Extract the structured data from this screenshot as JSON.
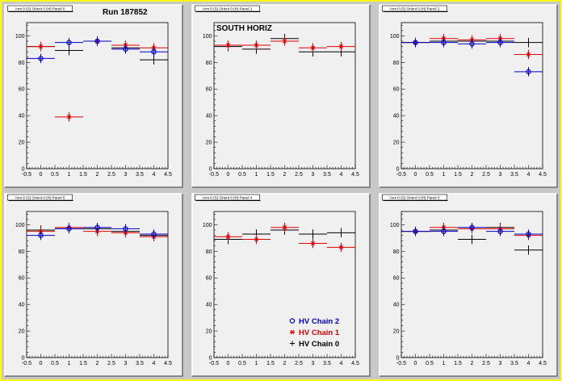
{
  "run_label": "Run 187852",
  "region_label": "SOUTH HORIZ",
  "legend": {
    "entries": [
      {
        "label": "HV Chain 2",
        "color": "#0000cc",
        "marker": "circle"
      },
      {
        "label": "HV Chain 1",
        "color": "#dd0000",
        "marker": "star"
      },
      {
        "label": "HV Chain 0",
        "color": "#000000",
        "marker": "plus"
      }
    ]
  },
  "chart_data": [
    {
      "type": "scatter",
      "title": "Arm 0 (S) Orient 0 (H) Panel 0",
      "xlim": [
        -0.5,
        4.5
      ],
      "ylim": [
        0,
        110
      ],
      "x_ticks": [
        -0.5,
        0,
        0.5,
        1,
        1.5,
        2,
        2.5,
        3,
        3.5,
        4,
        4.5
      ],
      "y_ticks": [
        0,
        20,
        40,
        60,
        80,
        100
      ],
      "series": [
        {
          "name": "HV Chain 2",
          "x": [
            0,
            1,
            2,
            3,
            4
          ],
          "y": [
            83,
            95,
            96,
            90,
            88
          ]
        },
        {
          "name": "HV Chain 1",
          "x": [
            0,
            1,
            2,
            3,
            4
          ],
          "y": [
            92,
            39,
            96,
            93,
            91
          ]
        },
        {
          "name": "HV Chain 0",
          "x": [
            0,
            1,
            2,
            3,
            4
          ],
          "y": [
            92,
            89,
            96,
            91,
            82
          ]
        }
      ]
    },
    {
      "type": "scatter",
      "title": "Arm 0 (S) Orient 0 (H) Panel 1",
      "xlim": [
        -0.5,
        4.5
      ],
      "ylim": [
        0,
        110
      ],
      "x_ticks": [
        -0.5,
        0,
        0.5,
        1,
        1.5,
        2,
        2.5,
        3,
        3.5,
        4,
        4.5
      ],
      "y_ticks": [
        0,
        20,
        40,
        60,
        80,
        100
      ],
      "series": [
        {
          "name": "HV Chain 2",
          "x": [],
          "y": []
        },
        {
          "name": "HV Chain 1",
          "x": [
            0,
            1,
            2,
            3,
            4
          ],
          "y": [
            93,
            93,
            96,
            91,
            92
          ]
        },
        {
          "name": "HV Chain 0",
          "x": [
            0,
            1,
            2,
            3,
            4
          ],
          "y": [
            92,
            90,
            98,
            88,
            88
          ]
        }
      ]
    },
    {
      "type": "scatter",
      "title": "Arm 0 (S) Orient 0 (H) Panel 2",
      "xlim": [
        -0.5,
        4.5
      ],
      "ylim": [
        0,
        110
      ],
      "x_ticks": [
        -0.5,
        0,
        0.5,
        1,
        1.5,
        2,
        2.5,
        3,
        3.5,
        4,
        4.5
      ],
      "y_ticks": [
        0,
        20,
        40,
        60,
        80,
        100
      ],
      "series": [
        {
          "name": "HV Chain 2",
          "x": [
            0,
            1,
            2,
            3,
            4
          ],
          "y": [
            95,
            95,
            94,
            95,
            73
          ]
        },
        {
          "name": "HV Chain 1",
          "x": [
            0,
            1,
            2,
            3,
            4
          ],
          "y": [
            95,
            98,
            97,
            98,
            86
          ]
        },
        {
          "name": "HV Chain 0",
          "x": [
            0,
            1,
            2,
            3,
            4
          ],
          "y": [
            95,
            96,
            96,
            96,
            95
          ]
        }
      ]
    },
    {
      "type": "scatter",
      "title": "Arm 0 (S) Orient 0 (H) Panel 5",
      "xlim": [
        -0.5,
        4.5
      ],
      "ylim": [
        0,
        110
      ],
      "x_ticks": [
        -0.5,
        0,
        0.5,
        1,
        1.5,
        2,
        2.5,
        3,
        3.5,
        4,
        4.5
      ],
      "y_ticks": [
        0,
        20,
        40,
        60,
        80,
        100
      ],
      "series": [
        {
          "name": "HV Chain 2",
          "x": [
            0,
            1,
            2,
            3,
            4
          ],
          "y": [
            92,
            97,
            98,
            97,
            93
          ]
        },
        {
          "name": "HV Chain 1",
          "x": [
            0,
            1,
            2,
            3,
            4
          ],
          "y": [
            95,
            98,
            95,
            94,
            91
          ]
        },
        {
          "name": "HV Chain 0",
          "x": [
            0,
            1,
            2,
            3,
            4
          ],
          "y": [
            96,
            97,
            97,
            95,
            92
          ]
        }
      ]
    },
    {
      "type": "scatter",
      "title": "Arm 0 (S) Orient 0 (H) Panel 4",
      "xlim": [
        -0.5,
        4.5
      ],
      "ylim": [
        0,
        110
      ],
      "x_ticks": [
        -0.5,
        0,
        0.5,
        1,
        1.5,
        2,
        2.5,
        3,
        3.5,
        4,
        4.5
      ],
      "y_ticks": [
        0,
        20,
        40,
        60,
        80,
        100
      ],
      "series": [
        {
          "name": "HV Chain 2",
          "x": [],
          "y": []
        },
        {
          "name": "HV Chain 1",
          "x": [
            0,
            1,
            2,
            3,
            4
          ],
          "y": [
            91,
            89,
            98,
            86,
            83
          ]
        },
        {
          "name": "HV Chain 0",
          "x": [
            0,
            1,
            2,
            3,
            4
          ],
          "y": [
            89,
            93,
            96,
            93,
            94
          ]
        }
      ]
    },
    {
      "type": "scatter",
      "title": "Arm 0 (S) Orient 0 (H) Panel 3",
      "xlim": [
        -0.5,
        4.5
      ],
      "ylim": [
        0,
        110
      ],
      "x_ticks": [
        -0.5,
        0,
        0.5,
        1,
        1.5,
        2,
        2.5,
        3,
        3.5,
        4,
        4.5
      ],
      "y_ticks": [
        0,
        20,
        40,
        60,
        80,
        100
      ],
      "series": [
        {
          "name": "HV Chain 2",
          "x": [
            0,
            1,
            2,
            3,
            4
          ],
          "y": [
            95,
            95,
            98,
            95,
            93
          ]
        },
        {
          "name": "HV Chain 1",
          "x": [
            0,
            1,
            2,
            3,
            4
          ],
          "y": [
            95,
            98,
            97,
            97,
            92
          ]
        },
        {
          "name": "HV Chain 0",
          "x": [
            0,
            1,
            2,
            3,
            4
          ],
          "y": [
            95,
            96,
            89,
            98,
            81
          ]
        }
      ]
    }
  ]
}
